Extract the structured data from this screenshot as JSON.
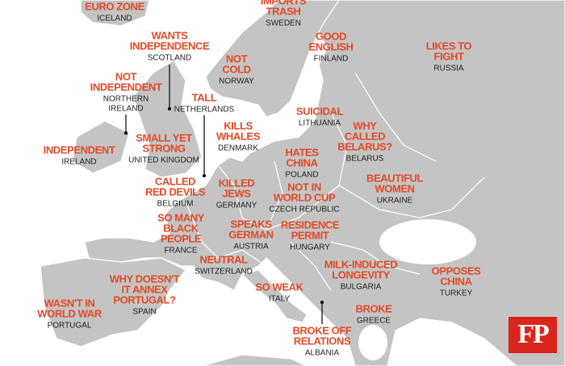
{
  "labels": [
    {
      "stereotype": [
        "EURO ZONE"
      ],
      "country": [
        "ICELAND"
      ]
    },
    {
      "stereotype": [
        "IMPORTS",
        "TRASH"
      ],
      "country": [
        "SWEDEN"
      ]
    },
    {
      "stereotype": [
        "GOOD",
        "ENGLISH"
      ],
      "country": [
        "FINLAND"
      ]
    },
    {
      "stereotype": [
        "LIKES TO",
        "FIGHT"
      ],
      "country": [
        "RUSSIA"
      ]
    },
    {
      "stereotype": [
        "WANTS",
        "INDEPENDENCE"
      ],
      "country": [
        "SCOTLAND"
      ]
    },
    {
      "stereotype": [
        "NOT",
        "COLD"
      ],
      "country": [
        "NORWAY"
      ]
    },
    {
      "stereotype": [
        "NOT",
        "INDEPENDENT"
      ],
      "country": [
        "NORTHERN",
        "IRELAND"
      ]
    },
    {
      "stereotype": [
        "TALL"
      ],
      "country": [
        "NETHERLANDS"
      ]
    },
    {
      "stereotype": [
        "SUICIDAL"
      ],
      "country": [
        "LITHUANIA"
      ]
    },
    {
      "stereotype": [
        "KILLS",
        "WHALES"
      ],
      "country": [
        "DENMARK"
      ]
    },
    {
      "stereotype": [
        "WHY",
        "CALLED",
        "BELARUS?"
      ],
      "country": [
        "BELARUS"
      ]
    },
    {
      "stereotype": [
        "SMALL YET",
        "STRONG"
      ],
      "country": [
        "UNITED KINGDOM"
      ]
    },
    {
      "stereotype": [
        "INDEPENDENT"
      ],
      "country": [
        "IRELAND"
      ]
    },
    {
      "stereotype": [
        "HATES",
        "CHINA"
      ],
      "country": [
        "POLAND"
      ]
    },
    {
      "stereotype": [
        "BEAUTIFUL",
        "WOMEN"
      ],
      "country": [
        "UKRAINE"
      ]
    },
    {
      "stereotype": [
        "CALLED",
        "RED DEVILS"
      ],
      "country": [
        "BELGIUM"
      ]
    },
    {
      "stereotype": [
        "KILLED",
        "JEWS"
      ],
      "country": [
        "GERMANY"
      ]
    },
    {
      "stereotype": [
        "NOT IN",
        "WORLD CUP"
      ],
      "country": [
        "CZECH REPUBLIC"
      ]
    },
    {
      "stereotype": [
        "SO MANY",
        "BLACK",
        "PEOPLE"
      ],
      "country": [
        "FRANCE"
      ]
    },
    {
      "stereotype": [
        "SPEAKS",
        "GERMAN"
      ],
      "country": [
        "AUSTRIA"
      ]
    },
    {
      "stereotype": [
        "RESIDENCE",
        "PERMIT"
      ],
      "country": [
        "HUNGARY"
      ]
    },
    {
      "stereotype": [
        "NEUTRAL"
      ],
      "country": [
        "SWITZERLAND"
      ]
    },
    {
      "stereotype": [
        "MILK-INDUCED",
        "LONGEVITY"
      ],
      "country": [
        "BULGARIA"
      ]
    },
    {
      "stereotype": [
        "OPPOSES",
        "CHINA"
      ],
      "country": [
        "TURKEY"
      ]
    },
    {
      "stereotype": [
        "WHY DOESN'T",
        "IT ANNEX",
        "PORTUGAL?"
      ],
      "country": [
        "SPAIN"
      ]
    },
    {
      "stereotype": [
        "SO WEAK"
      ],
      "country": [
        "ITALY"
      ]
    },
    {
      "stereotype": [
        "WASN'T IN",
        "WORLD WAR"
      ],
      "country": [
        "PORTUGAL"
      ]
    },
    {
      "stereotype": [
        "BROKE"
      ],
      "country": [
        "GREECE"
      ]
    },
    {
      "stereotype": [
        "BROKE OFF",
        "RELATIONS"
      ],
      "country": [
        "ALBANIA"
      ]
    }
  ],
  "logo": "FP"
}
